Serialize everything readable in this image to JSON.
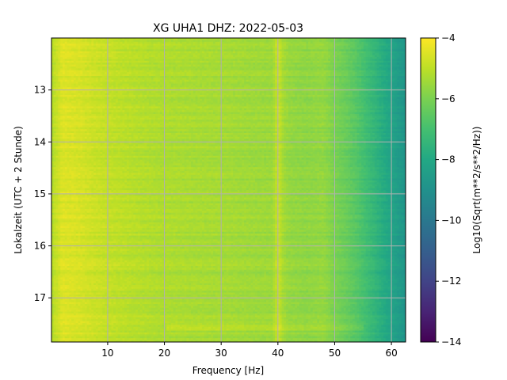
{
  "chart_data": {
    "type": "heatmap",
    "title": "XG UHA1  DHZ: 2022-05-03",
    "xlabel": "Frequency [Hz]",
    "ylabel": "Lokalzeit (UTC + 2 Stunde)",
    "colorbar_label": "Log10(Sqrt(m**2/s**2/Hz))",
    "colormap": "viridis",
    "xlim": [
      0.1,
      62.5
    ],
    "ylim": [
      12.0,
      17.85
    ],
    "y_inverted": true,
    "clim": [
      -14,
      -4
    ],
    "grid": true,
    "x_ticks": [
      10,
      20,
      30,
      40,
      50,
      60
    ],
    "x_tick_labels": [
      "10",
      "20",
      "30",
      "40",
      "50",
      "60"
    ],
    "y_ticks": [
      13,
      14,
      15,
      16,
      17
    ],
    "y_tick_labels": [
      "13",
      "14",
      "15",
      "16",
      "17"
    ],
    "colorbar_ticks": [
      -4,
      -6,
      -8,
      -10,
      -12,
      -14
    ],
    "colorbar_tick_labels": [
      "−4",
      "−6",
      "−8",
      "−10",
      "−12",
      "−14"
    ],
    "frequency_profile": {
      "frequency_hz": [
        0,
        2,
        5,
        8,
        12,
        18,
        25,
        30,
        35,
        39,
        40,
        41,
        42,
        45,
        48,
        50,
        52,
        54,
        56,
        58,
        60,
        62.5
      ],
      "log10_amplitude": [
        -5.2,
        -4.5,
        -4.6,
        -4.8,
        -5.0,
        -5.2,
        -5.3,
        -5.35,
        -5.45,
        -5.5,
        -4.8,
        -5.4,
        -5.6,
        -5.7,
        -5.6,
        -6.0,
        -6.3,
        -6.7,
        -7.2,
        -7.7,
        -8.2,
        -8.8
      ]
    },
    "notes": {
      "bright_line_hz": 40.5,
      "bright_band_hour": 17.55
    }
  }
}
